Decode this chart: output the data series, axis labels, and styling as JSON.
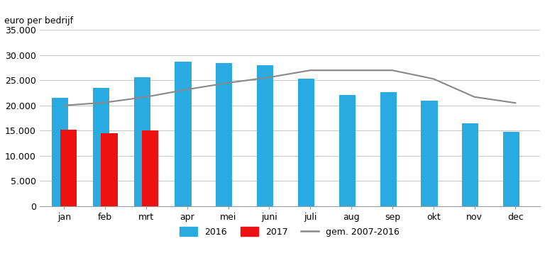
{
  "months": [
    "jan",
    "feb",
    "mrt",
    "apr",
    "mei",
    "juni",
    "juli",
    "aug",
    "sep",
    "okt",
    "nov",
    "dec"
  ],
  "values_2016": [
    21500,
    23500,
    25600,
    28700,
    28400,
    28000,
    25400,
    22100,
    22700,
    21000,
    16400,
    14800
  ],
  "values_2017": [
    15200,
    14400,
    15000,
    null,
    null,
    null,
    null,
    null,
    null,
    null,
    null,
    null
  ],
  "gem_2007_2016": [
    20000,
    20600,
    21700,
    23200,
    24500,
    25600,
    27000,
    27000,
    27000,
    25300,
    21700,
    20500
  ],
  "bar_color_2016": "#29ABE2",
  "bar_color_2017": "#EE1111",
  "line_color_gem": "#888888",
  "ylabel": "euro per bedrijf",
  "ylim": [
    0,
    35000
  ],
  "yticks": [
    0,
    5000,
    10000,
    15000,
    20000,
    25000,
    30000,
    35000
  ],
  "ytick_labels": [
    "0",
    "5.000",
    "10.000",
    "15.000",
    "20.000",
    "25.000",
    "30.000",
    "35.000"
  ],
  "legend_2016": "2016",
  "legend_2017": "2017",
  "legend_gem": "gem. 2007-2016",
  "background_color": "#FFFFFF",
  "grid_color": "#BBBBBB",
  "bar_width": 0.4,
  "figsize": [
    7.68,
    3.88
  ],
  "dpi": 100
}
